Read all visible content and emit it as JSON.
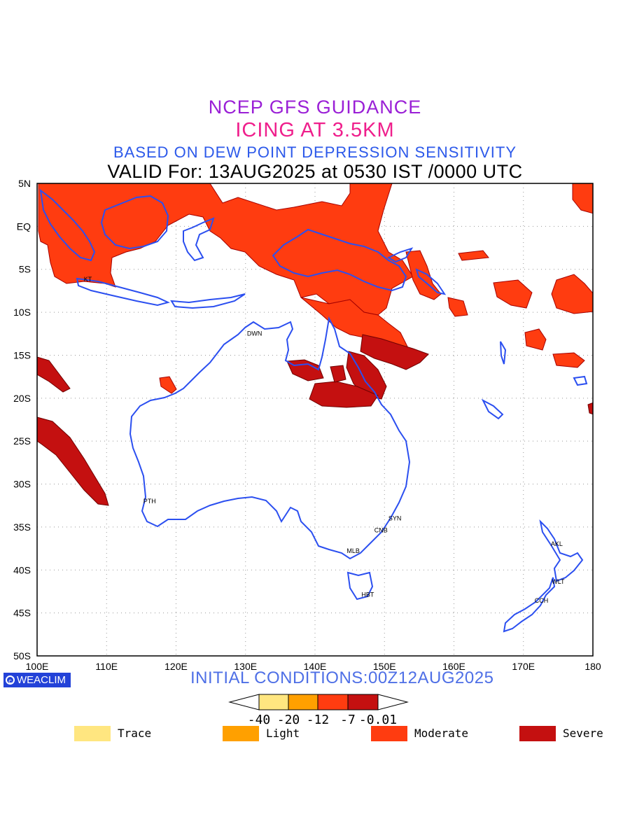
{
  "header": {
    "line1": "NCEP GFS GUIDANCE",
    "line2": "ICING AT 3.5KM",
    "line3": "BASED ON DEW POINT DEPRESSION SENSITIVITY",
    "line4": "VALID For: 13AUG2025 at 0530 IST /0000 UTC"
  },
  "map": {
    "lon_range": [
      100,
      180
    ],
    "lat_range": [
      -50,
      5
    ],
    "lon_ticks": [
      "100E",
      "110E",
      "120E",
      "130E",
      "140E",
      "150E",
      "160E",
      "170E",
      "180"
    ],
    "lat_ticks": [
      "5N",
      "EQ",
      "5S",
      "10S",
      "15S",
      "20S",
      "25S",
      "30S",
      "35S",
      "40S",
      "45S",
      "50S"
    ],
    "stations": [
      {
        "label": "KT",
        "lon": 107.3,
        "lat": -6.1
      },
      {
        "label": "DWN",
        "lon": 131.3,
        "lat": -12.4
      },
      {
        "label": "PTH",
        "lon": 116.2,
        "lat": -31.9
      },
      {
        "label": "MLB",
        "lon": 145.5,
        "lat": -37.7
      },
      {
        "label": "CNB",
        "lon": 149.5,
        "lat": -35.3
      },
      {
        "label": "SYN",
        "lon": 151.5,
        "lat": -33.9
      },
      {
        "label": "HBT",
        "lon": 147.6,
        "lat": -42.8
      },
      {
        "label": "AKL",
        "lon": 174.8,
        "lat": -36.9
      },
      {
        "label": "WLT",
        "lon": 175.0,
        "lat": -41.3
      },
      {
        "label": "CCH",
        "lon": 172.6,
        "lat": -43.5
      }
    ],
    "colors": {
      "coast": "#2b4ff0",
      "moderate": "#ff3c10",
      "severe": "#c41010",
      "grid": "#999999"
    }
  },
  "footer": {
    "brand": "WEACLIM",
    "brand_icon": "copyright-circle-icon",
    "initial_conditions": "INITIAL CONDITIONS:00Z12AUG2025"
  },
  "colorbar": {
    "tick_labels": [
      "-40",
      "-20",
      "-12",
      "-7",
      "-0.01"
    ],
    "colors": [
      "#ffe680",
      "#ffa000",
      "#ff3c10",
      "#c41010"
    ]
  },
  "legend": [
    {
      "label": "Trace",
      "color": "#ffe680"
    },
    {
      "label": "Light",
      "color": "#ffa000"
    },
    {
      "label": "Moderate",
      "color": "#ff3c10"
    },
    {
      "label": "Severe",
      "color": "#c41010"
    }
  ]
}
